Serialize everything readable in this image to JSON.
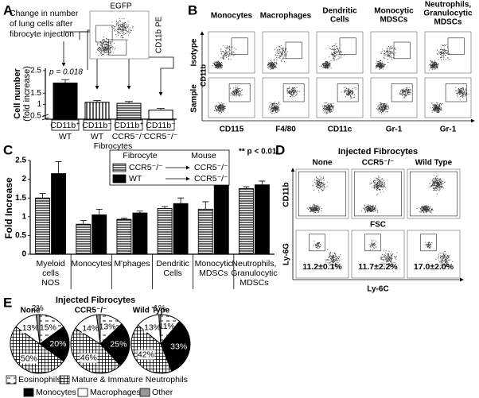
{
  "figure": {
    "panel_labels": [
      "A",
      "B",
      "C",
      "D",
      "E"
    ],
    "inset": {
      "x_label": "EGFP",
      "y_label": "CD11b PE",
      "annotation": [
        "Change in number",
        "of lung cells after",
        "fibrocyte injection"
      ]
    },
    "cytometry_b": {
      "columns": [
        [
          "Monocytes"
        ],
        [
          "Macrophages"
        ],
        [
          "Dendritic",
          "Cells"
        ],
        [
          "Monocytic",
          "MDSCs"
        ],
        [
          "Neutrophils,",
          "Granulocytic",
          "MDSCs"
        ]
      ],
      "rows": [
        "Isotype",
        "Sample"
      ],
      "y_label": "CD11b",
      "x_labels": [
        "CD115",
        "F4/80",
        "CD11c",
        "Gr-1",
        "Gr-1"
      ]
    },
    "cytometry_d": {
      "title": "Injected Fibrocytes",
      "columns": [
        "None",
        "CCR5⁻/⁻",
        "Wild Type"
      ],
      "y_labels": [
        "CD11b",
        "Ly-6G"
      ],
      "x_labels": [
        "FSC",
        "Ly-6C"
      ],
      "percentages": [
        "11.2±0.1%",
        "11.7±2.2%",
        "17.0±2.0%"
      ]
    },
    "panel_e_title": "Injected Fibrocytes"
  },
  "chart_data": [
    {
      "type": "bar",
      "categories": [
        "CD11b⁺",
        "CD11b⁻",
        "CD11b⁺",
        "CD11b⁻"
      ],
      "subcategories": [
        "WT",
        "WT",
        "CCR5⁻/⁻",
        "CCR5⁻/⁻"
      ],
      "x_label": "Fibrocytes",
      "y_label": [
        "Cell number",
        "(fold increase)"
      ],
      "values": [
        1.95,
        1.1,
        1.05,
        0.75
      ],
      "errors": [
        0.15,
        0.08,
        0.08,
        0.07
      ],
      "colors": [
        "#000000",
        "#ffffff",
        "#1a1a1a",
        "#ffffff"
      ],
      "hatch": [
        "none",
        "vertical",
        "horizontal",
        "none"
      ],
      "ylim": [
        0.35,
        2.6
      ],
      "yticks": [
        0.5,
        1,
        1.5,
        2.5
      ],
      "annotation": "p = 0.018"
    },
    {
      "type": "grouped-bar",
      "categories": [
        [
          "Myeloid",
          "cells",
          "NOS"
        ],
        [
          "Monocytes"
        ],
        [
          "M'phages"
        ],
        [
          "Dendritic",
          "Cells"
        ],
        [
          "Monocytic",
          "MDSCs"
        ],
        [
          "Neutrophils,",
          "Granulocytic",
          "MDSCs"
        ]
      ],
      "y_label": "Fold Increase",
      "legend_header": [
        "Fibrocyte",
        "Mouse"
      ],
      "series": [
        {
          "name": "CCR5⁻/⁻",
          "mouse": "CCR5⁻/⁻",
          "color": "#ffffff",
          "hatch": "horizontal",
          "values": [
            1.5,
            0.8,
            0.93,
            1.22,
            1.2,
            1.75
          ],
          "errors": [
            0.12,
            0.1,
            0.03,
            0.05,
            0.2,
            0.05
          ]
        },
        {
          "name": "WT",
          "mouse": "CCR5⁻/⁻",
          "color": "#000000",
          "hatch": "none",
          "values": [
            2.15,
            1.05,
            1.1,
            1.35,
            2.05,
            1.85
          ],
          "errors": [
            0.32,
            0.15,
            0.05,
            0.15,
            0.18,
            0.1
          ],
          "marks": [
            null,
            null,
            null,
            null,
            "**",
            null
          ]
        }
      ],
      "ylim": [
        0,
        2.5
      ],
      "yticks": [
        0,
        0.5,
        1,
        1.5,
        2,
        2.5
      ],
      "note": "** p < 0.01"
    },
    {
      "type": "pie",
      "categories": [
        "Eosinophils",
        "Monocytes",
        "Mature & Immature Neutrophils",
        "Macrophages",
        "Other"
      ],
      "colors": [
        "#ffffff",
        "#000000",
        "#ffffff",
        "#ffffff",
        "#9a9a9a"
      ],
      "hatch": [
        "dash",
        "none",
        "grid",
        "none",
        "none"
      ],
      "pies": [
        {
          "title": "None",
          "values": [
            15,
            20,
            50,
            13,
            2
          ],
          "value_labels": [
            "15%",
            "20%",
            "50%",
            "13%",
            "2%"
          ]
        },
        {
          "title": "CCR5⁻/⁻",
          "values": [
            13,
            25,
            46,
            14,
            2
          ],
          "value_labels": [
            "13%",
            "25%",
            "46%",
            "14%",
            null
          ]
        },
        {
          "title": "Wild Type",
          "values": [
            11,
            33,
            42,
            13,
            1
          ],
          "value_labels": [
            "11%",
            "33%",
            "42%",
            "13%",
            "1%"
          ]
        }
      ]
    }
  ]
}
